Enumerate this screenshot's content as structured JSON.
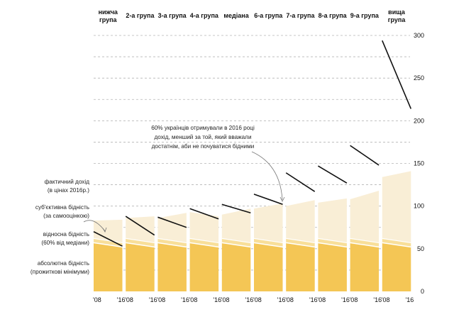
{
  "chart_data": {
    "type": "area",
    "title": "",
    "xlabel": "",
    "ylabel": "",
    "ylim": [
      0,
      300
    ],
    "yticks": [
      0,
      50,
      100,
      150,
      200,
      250,
      300
    ],
    "year_labels": [
      "'08",
      "'16"
    ],
    "grid": "horizontal dashed",
    "groups": [
      {
        "label": [
          "нижча",
          "група"
        ],
        "income": [
          70,
          53
        ],
        "absolute": [
          57,
          52
        ],
        "relative": [
          62,
          57
        ],
        "subjective": [
          83,
          84
        ]
      },
      {
        "label": [
          "2-а група"
        ],
        "income": [
          88,
          66
        ],
        "absolute": [
          57,
          52
        ],
        "relative": [
          62,
          57
        ],
        "subjective": [
          86,
          88
        ]
      },
      {
        "label": [
          "3-а група"
        ],
        "income": [
          87,
          75
        ],
        "absolute": [
          57,
          52
        ],
        "relative": [
          62,
          57
        ],
        "subjective": [
          86,
          92
        ]
      },
      {
        "label": [
          "4-а група"
        ],
        "income": [
          97,
          85
        ],
        "absolute": [
          57,
          52
        ],
        "relative": [
          62,
          57
        ],
        "subjective": [
          93,
          88
        ]
      },
      {
        "label": [
          "медіана"
        ],
        "income": [
          102,
          92
        ],
        "absolute": [
          57,
          52
        ],
        "relative": [
          62,
          57
        ],
        "subjective": [
          90,
          97
        ]
      },
      {
        "label": [
          "6-а група"
        ],
        "income": [
          114,
          102
        ],
        "absolute": [
          57,
          52
        ],
        "relative": [
          62,
          57
        ],
        "subjective": [
          97,
          103
        ]
      },
      {
        "label": [
          "7-а група"
        ],
        "income": [
          139,
          117
        ],
        "absolute": [
          57,
          52
        ],
        "relative": [
          62,
          57
        ],
        "subjective": [
          100,
          107
        ]
      },
      {
        "label": [
          "8-а група"
        ],
        "income": [
          147,
          127
        ],
        "absolute": [
          57,
          52
        ],
        "relative": [
          62,
          57
        ],
        "subjective": [
          104,
          109
        ]
      },
      {
        "label": [
          "9-а група"
        ],
        "income": [
          171,
          148
        ],
        "absolute": [
          57,
          52
        ],
        "relative": [
          62,
          57
        ],
        "subjective": [
          108,
          118
        ]
      },
      {
        "label": [
          "вища",
          "група"
        ],
        "income": [
          294,
          214
        ],
        "absolute": [
          57,
          52
        ],
        "relative": [
          62,
          57
        ],
        "subjective": [
          134,
          141
        ]
      }
    ],
    "legend_labels": [
      [
        "фактичний дохід",
        "(в цінах 2016р.)"
      ],
      [
        "суб'єктивна бідність",
        "(за самооцінкою)"
      ],
      [
        "відносна бідність",
        "(60% від медіани)"
      ],
      [
        "абсолютна бідність",
        "(прожиткові мінімуми)"
      ]
    ],
    "annotation": [
      "60% українців отримували в 2016 році",
      "дохід,  менший за той,  який вважали",
      "достатнім, аби не почуватися бідними"
    ]
  },
  "colors": {
    "absolute": "#f4c655",
    "relative": "#f8df9a",
    "subjective": "#f9eed6",
    "income_line": "#111111",
    "grid": "#b5b5b5"
  }
}
